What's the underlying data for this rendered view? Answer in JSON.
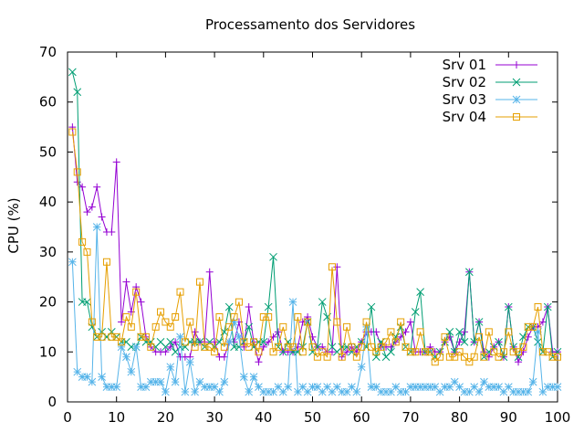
{
  "chart_data": {
    "type": "line",
    "title": "Processamento dos Servidores",
    "xlabel": "",
    "ylabel": "CPU (%)",
    "xlim": [
      0,
      100
    ],
    "ylim": [
      0,
      70
    ],
    "xticks": [
      0,
      10,
      20,
      30,
      40,
      50,
      60,
      70,
      80,
      90,
      100
    ],
    "yticks": [
      0,
      10,
      20,
      30,
      40,
      50,
      60,
      70
    ],
    "grid": false,
    "legend_position": "top-right",
    "series": [
      {
        "name": "Srv 01",
        "color": "#9400d3",
        "marker": "plus",
        "x": [
          1,
          2,
          3,
          4,
          5,
          6,
          7,
          8,
          9,
          10,
          11,
          12,
          13,
          14,
          15,
          16,
          17,
          18,
          19,
          20,
          21,
          22,
          23,
          24,
          25,
          26,
          27,
          28,
          29,
          30,
          31,
          32,
          33,
          34,
          35,
          36,
          37,
          38,
          39,
          40,
          41,
          42,
          43,
          44,
          45,
          46,
          47,
          48,
          49,
          50,
          51,
          52,
          53,
          54,
          55,
          56,
          57,
          58,
          59,
          60,
          61,
          62,
          63,
          64,
          65,
          66,
          67,
          68,
          69,
          70,
          71,
          72,
          73,
          74,
          75,
          76,
          77,
          78,
          79,
          80,
          81,
          82,
          83,
          84,
          85,
          86,
          87,
          88,
          89,
          90,
          91,
          92,
          93,
          94,
          95,
          96,
          97,
          98,
          99,
          100
        ],
        "values": [
          55,
          44,
          43,
          38,
          39,
          43,
          37,
          34,
          34,
          48,
          16,
          24,
          18,
          23,
          20,
          13,
          11,
          10,
          10,
          10,
          11,
          12,
          9,
          9,
          9,
          14,
          12,
          12,
          26,
          12,
          9,
          9,
          12,
          12,
          16,
          11,
          19,
          12,
          8,
          11,
          12,
          13,
          14,
          10,
          10,
          10,
          11,
          16,
          17,
          13,
          11,
          11,
          10,
          10,
          27,
          9,
          10,
          11,
          10,
          12,
          14,
          14,
          14,
          11,
          11,
          11,
          12,
          13,
          14,
          16,
          10,
          10,
          10,
          11,
          10,
          10,
          12,
          13,
          10,
          12,
          14,
          26,
          12,
          16,
          10,
          9,
          11,
          12,
          9,
          19,
          11,
          8,
          10,
          13,
          15,
          15,
          16,
          19,
          10,
          10
        ]
      },
      {
        "name": "Srv 02",
        "color": "#009e73",
        "marker": "cross",
        "x": [
          1,
          2,
          3,
          4,
          5,
          6,
          7,
          8,
          9,
          10,
          11,
          12,
          13,
          14,
          15,
          16,
          17,
          18,
          19,
          20,
          21,
          22,
          23,
          24,
          25,
          26,
          27,
          28,
          29,
          30,
          31,
          32,
          33,
          34,
          35,
          36,
          37,
          38,
          39,
          40,
          41,
          42,
          43,
          44,
          45,
          46,
          47,
          48,
          49,
          50,
          51,
          52,
          53,
          54,
          55,
          56,
          57,
          58,
          59,
          60,
          61,
          62,
          63,
          64,
          65,
          66,
          67,
          68,
          69,
          70,
          71,
          72,
          73,
          74,
          75,
          76,
          77,
          78,
          79,
          80,
          81,
          82,
          83,
          84,
          85,
          86,
          87,
          88,
          89,
          90,
          91,
          92,
          93,
          94,
          95,
          96,
          97,
          98,
          99,
          100
        ],
        "values": [
          66,
          62,
          20,
          20,
          15,
          13,
          14,
          13,
          14,
          13,
          12,
          12,
          11,
          11,
          13,
          12,
          12,
          11,
          12,
          11,
          12,
          10,
          11,
          11,
          12,
          12,
          12,
          11,
          12,
          11,
          12,
          14,
          19,
          11,
          11,
          12,
          15,
          11,
          12,
          12,
          19,
          29,
          11,
          10,
          12,
          10,
          10,
          11,
          16,
          10,
          11,
          20,
          17,
          11,
          10,
          11,
          11,
          10,
          11,
          12,
          11,
          19,
          9,
          12,
          9,
          10,
          13,
          15,
          11,
          10,
          18,
          22,
          10,
          10,
          9,
          10,
          12,
          14,
          10,
          14,
          12,
          26,
          12,
          16,
          9,
          10,
          11,
          12,
          9,
          19,
          11,
          9,
          13,
          15,
          15,
          12,
          10,
          19,
          9,
          10
        ]
      },
      {
        "name": "Srv 03",
        "color": "#56b4e9",
        "marker": "star",
        "x": [
          1,
          2,
          3,
          4,
          5,
          6,
          7,
          8,
          9,
          10,
          11,
          12,
          13,
          14,
          15,
          16,
          17,
          18,
          19,
          20,
          21,
          22,
          23,
          24,
          25,
          26,
          27,
          28,
          29,
          30,
          31,
          32,
          33,
          34,
          35,
          36,
          37,
          38,
          39,
          40,
          41,
          42,
          43,
          44,
          45,
          46,
          47,
          48,
          49,
          50,
          51,
          52,
          53,
          54,
          55,
          56,
          57,
          58,
          59,
          60,
          61,
          62,
          63,
          64,
          65,
          66,
          67,
          68,
          69,
          70,
          71,
          72,
          73,
          74,
          75,
          76,
          77,
          78,
          79,
          80,
          81,
          82,
          83,
          84,
          85,
          86,
          87,
          88,
          89,
          90,
          91,
          92,
          93,
          94,
          95,
          96,
          97,
          98,
          99,
          100
        ],
        "values": [
          28,
          6,
          5,
          5,
          4,
          35,
          5,
          3,
          3,
          3,
          11,
          9,
          6,
          11,
          3,
          3,
          4,
          4,
          4,
          2,
          7,
          4,
          13,
          2,
          8,
          2,
          4,
          3,
          3,
          3,
          2,
          4,
          12,
          16,
          13,
          5,
          2,
          5,
          3,
          2,
          2,
          2,
          3,
          2,
          3,
          20,
          2,
          3,
          2,
          3,
          3,
          2,
          3,
          2,
          3,
          2,
          2,
          3,
          2,
          7,
          15,
          3,
          3,
          2,
          2,
          2,
          3,
          2,
          2,
          3,
          3,
          3,
          3,
          3,
          3,
          2,
          3,
          3,
          4,
          3,
          2,
          2,
          3,
          2,
          4,
          3,
          3,
          3,
          2,
          3,
          2,
          2,
          2,
          2,
          4,
          14,
          2,
          3,
          3,
          3
        ]
      },
      {
        "name": "Srv 04",
        "color": "#e69f00",
        "marker": "square",
        "x": [
          1,
          2,
          3,
          4,
          5,
          6,
          7,
          8,
          9,
          10,
          11,
          12,
          13,
          14,
          15,
          16,
          17,
          18,
          19,
          20,
          21,
          22,
          23,
          24,
          25,
          26,
          27,
          28,
          29,
          30,
          31,
          32,
          33,
          34,
          35,
          36,
          37,
          38,
          39,
          40,
          41,
          42,
          43,
          44,
          45,
          46,
          47,
          48,
          49,
          50,
          51,
          52,
          53,
          54,
          55,
          56,
          57,
          58,
          59,
          60,
          61,
          62,
          63,
          64,
          65,
          66,
          67,
          68,
          69,
          70,
          71,
          72,
          73,
          74,
          75,
          76,
          77,
          78,
          79,
          80,
          81,
          82,
          83,
          84,
          85,
          86,
          87,
          88,
          89,
          90,
          91,
          92,
          93,
          94,
          95,
          96,
          97,
          98,
          99,
          100
        ],
        "values": [
          54,
          46,
          32,
          30,
          16,
          13,
          13,
          28,
          13,
          13,
          12,
          17,
          15,
          22,
          13,
          13,
          11,
          15,
          18,
          16,
          15,
          17,
          22,
          12,
          16,
          11,
          24,
          11,
          11,
          10,
          17,
          11,
          15,
          17,
          20,
          12,
          11,
          12,
          10,
          17,
          17,
          10,
          11,
          15,
          11,
          11,
          17,
          10,
          16,
          11,
          9,
          10,
          9,
          27,
          16,
          9,
          15,
          11,
          9,
          11,
          16,
          11,
          10,
          11,
          12,
          14,
          12,
          16,
          11,
          10,
          10,
          14,
          10,
          10,
          8,
          9,
          13,
          9,
          9,
          10,
          9,
          8,
          9,
          13,
          9,
          14,
          10,
          9,
          10,
          14,
          10,
          10,
          11,
          15,
          15,
          19,
          10,
          10,
          9,
          9
        ]
      }
    ]
  }
}
